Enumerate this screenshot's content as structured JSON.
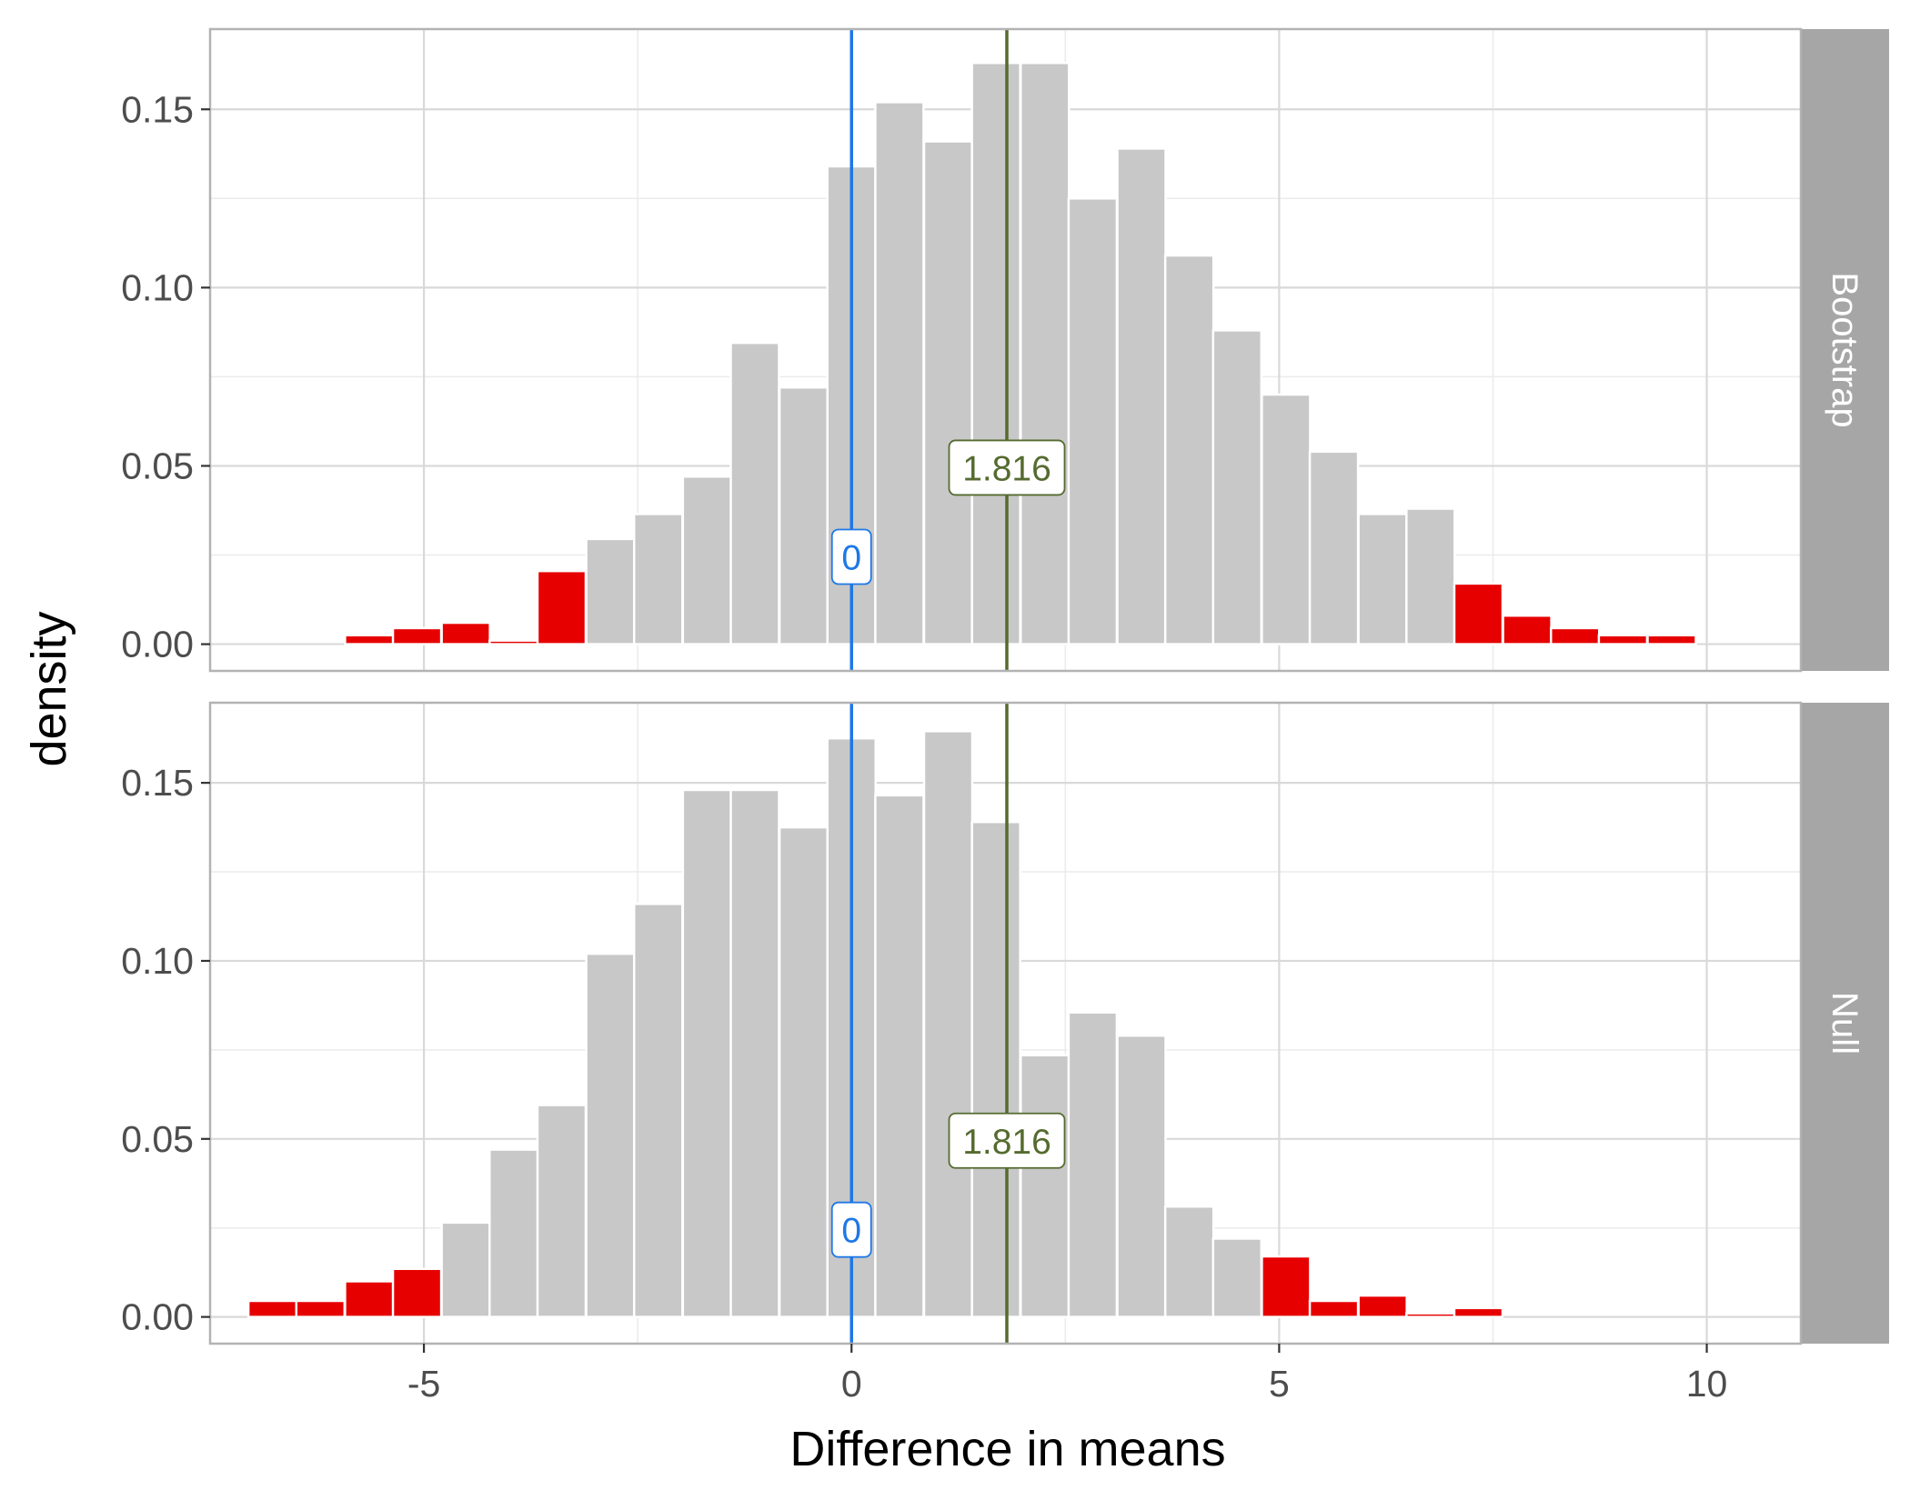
{
  "chart_data": {
    "type": "bar",
    "title": "",
    "xlabel": "Difference in means",
    "ylabel": "density",
    "xlim": [
      -7.5,
      11.1
    ],
    "ylim": [
      -0.0075,
      0.1725
    ],
    "x_ticks": [
      -5,
      0,
      5,
      10
    ],
    "x_tick_labels": [
      "-5",
      "0",
      "5",
      "10"
    ],
    "y_ticks": [
      0,
      0.05,
      0.1,
      0.15
    ],
    "y_tick_labels": [
      "0.00",
      "0.05",
      "0.10",
      "0.15"
    ],
    "grid": true,
    "bin_width": 0.5638,
    "colors": {
      "shaded": "#e60000",
      "unshaded": "#c8c8c8",
      "null_line": "#1e78e6",
      "observed_line": "#556b2f",
      "strip": "#a6a6a6",
      "grid_major": "#d9d9d9",
      "grid_minor": "#ebebeb",
      "panel_border": "#b3b3b3"
    },
    "reference_lines": [
      {
        "name": "null-value",
        "x": 0,
        "label": "0",
        "label_y": 0.0245
      },
      {
        "name": "observed-statistic",
        "x": 1.816,
        "label": "1.816",
        "label_y": 0.0495
      }
    ],
    "panels": [
      {
        "strip": "Bootstrap",
        "bins": [
          {
            "center": -6.77,
            "density": 0.0,
            "shaded": true
          },
          {
            "center": -6.21,
            "density": 0.0,
            "shaded": true
          },
          {
            "center": -5.64,
            "density": 0.0025,
            "shaded": true
          },
          {
            "center": -5.08,
            "density": 0.0045,
            "shaded": true
          },
          {
            "center": -4.51,
            "density": 0.006,
            "shaded": true
          },
          {
            "center": -3.95,
            "density": 0.001,
            "shaded": true
          },
          {
            "center": -3.39,
            "density": 0.0205,
            "shaded": true
          },
          {
            "center": -2.82,
            "density": 0.0295,
            "shaded": false
          },
          {
            "center": -2.26,
            "density": 0.0365,
            "shaded": false
          },
          {
            "center": -1.69,
            "density": 0.047,
            "shaded": false
          },
          {
            "center": -1.13,
            "density": 0.0845,
            "shaded": false
          },
          {
            "center": -0.56,
            "density": 0.072,
            "shaded": false
          },
          {
            "center": 0.0,
            "density": 0.134,
            "shaded": false
          },
          {
            "center": 0.56,
            "density": 0.152,
            "shaded": false
          },
          {
            "center": 1.13,
            "density": 0.141,
            "shaded": false
          },
          {
            "center": 1.69,
            "density": 0.163,
            "shaded": false
          },
          {
            "center": 2.26,
            "density": 0.163,
            "shaded": false
          },
          {
            "center": 2.82,
            "density": 0.125,
            "shaded": false
          },
          {
            "center": 3.39,
            "density": 0.139,
            "shaded": false
          },
          {
            "center": 3.95,
            "density": 0.109,
            "shaded": false
          },
          {
            "center": 4.51,
            "density": 0.088,
            "shaded": false
          },
          {
            "center": 5.08,
            "density": 0.07,
            "shaded": false
          },
          {
            "center": 5.64,
            "density": 0.054,
            "shaded": false
          },
          {
            "center": 6.21,
            "density": 0.0365,
            "shaded": false
          },
          {
            "center": 6.77,
            "density": 0.038,
            "shaded": false
          },
          {
            "center": 7.33,
            "density": 0.017,
            "shaded": true
          },
          {
            "center": 7.9,
            "density": 0.008,
            "shaded": true
          },
          {
            "center": 8.46,
            "density": 0.0045,
            "shaded": true
          },
          {
            "center": 9.02,
            "density": 0.0025,
            "shaded": true
          },
          {
            "center": 9.59,
            "density": 0.0025,
            "shaded": true
          }
        ]
      },
      {
        "strip": "Null",
        "bins": [
          {
            "center": -6.77,
            "density": 0.0045,
            "shaded": true
          },
          {
            "center": -6.21,
            "density": 0.0045,
            "shaded": true
          },
          {
            "center": -5.64,
            "density": 0.01,
            "shaded": true
          },
          {
            "center": -5.08,
            "density": 0.0135,
            "shaded": true
          },
          {
            "center": -4.51,
            "density": 0.0265,
            "shaded": false
          },
          {
            "center": -3.95,
            "density": 0.047,
            "shaded": false
          },
          {
            "center": -3.39,
            "density": 0.0595,
            "shaded": false
          },
          {
            "center": -2.82,
            "density": 0.102,
            "shaded": false
          },
          {
            "center": -2.26,
            "density": 0.116,
            "shaded": false
          },
          {
            "center": -1.69,
            "density": 0.148,
            "shaded": false
          },
          {
            "center": -1.13,
            "density": 0.148,
            "shaded": false
          },
          {
            "center": -0.56,
            "density": 0.1375,
            "shaded": false
          },
          {
            "center": 0.0,
            "density": 0.1625,
            "shaded": false
          },
          {
            "center": 0.56,
            "density": 0.1465,
            "shaded": false
          },
          {
            "center": 1.13,
            "density": 0.1645,
            "shaded": false
          },
          {
            "center": 1.69,
            "density": 0.139,
            "shaded": false
          },
          {
            "center": 2.26,
            "density": 0.0735,
            "shaded": false
          },
          {
            "center": 2.82,
            "density": 0.0855,
            "shaded": false
          },
          {
            "center": 3.39,
            "density": 0.079,
            "shaded": false
          },
          {
            "center": 3.95,
            "density": 0.031,
            "shaded": false
          },
          {
            "center": 4.51,
            "density": 0.022,
            "shaded": false
          },
          {
            "center": 5.08,
            "density": 0.017,
            "shaded": true
          },
          {
            "center": 5.64,
            "density": 0.0045,
            "shaded": true
          },
          {
            "center": 6.21,
            "density": 0.006,
            "shaded": true
          },
          {
            "center": 6.77,
            "density": 0.001,
            "shaded": true
          },
          {
            "center": 7.33,
            "density": 0.0025,
            "shaded": true
          },
          {
            "center": 7.9,
            "density": 0.0,
            "shaded": true
          },
          {
            "center": 8.46,
            "density": 0.0,
            "shaded": true
          },
          {
            "center": 9.02,
            "density": 0.0,
            "shaded": true
          },
          {
            "center": 9.59,
            "density": 0.0,
            "shaded": true
          }
        ]
      }
    ]
  }
}
